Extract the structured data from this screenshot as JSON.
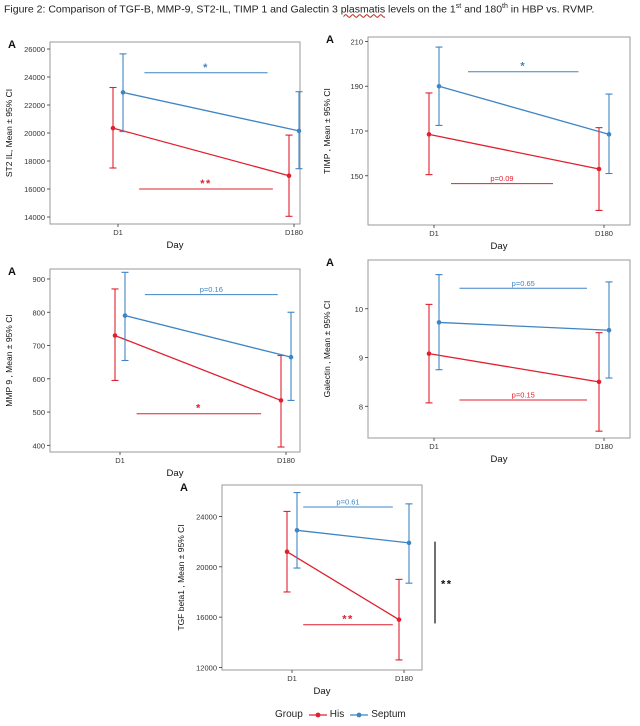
{
  "caption": {
    "prefix": "Figure 2: Comparison of TGF-B, MMP-9, ST2-IL, TIMP 1 and Galectin 3 ",
    "misspelled": "plasmatis",
    "mid": " levels on the 1",
    "sup1": "st",
    "mid2": " and 180",
    "sup2": "th",
    "suffix": " in HBP vs. RVMP."
  },
  "colors": {
    "his": "#e0202e",
    "septum": "#3f84c4",
    "axis": "#333333",
    "frame": "#9a9a9a"
  },
  "legend": {
    "title": "Group",
    "items": [
      "His",
      "Septum"
    ]
  },
  "chart_data": [
    {
      "type": "line",
      "letter": "A",
      "ylabel": "ST2 IL,  Mean ± 95% CI",
      "xlabel": "Day",
      "categories": [
        "D1",
        "D180"
      ],
      "ylim": [
        13500,
        26500
      ],
      "yticks": [
        14000,
        16000,
        18000,
        20000,
        22000,
        24000,
        26000
      ],
      "series": [
        {
          "name": "His",
          "values": [
            20350,
            16950
          ],
          "lower": [
            17500,
            14050
          ],
          "upper": [
            23250,
            19850
          ]
        },
        {
          "name": "Septum",
          "values": [
            22900,
            20150
          ],
          "lower": [
            20100,
            17450
          ],
          "upper": [
            25650,
            22950
          ]
        }
      ],
      "annotations": [
        {
          "text": "*",
          "color": "septum",
          "x1": 0.15,
          "x2": 0.85,
          "y": 24300,
          "textAbove": true
        },
        {
          "text": "**",
          "color": "his",
          "x1": 0.12,
          "x2": 0.88,
          "y": 16000,
          "textAbove": true
        }
      ]
    },
    {
      "type": "line",
      "letter": "A",
      "ylabel": "TIMP ,  Mean ± 95% CI",
      "xlabel": "Day",
      "categories": [
        "D1",
        "D180"
      ],
      "ylim": [
        128,
        212
      ],
      "yticks": [
        150,
        170,
        190,
        210
      ],
      "ytickLabels": [
        "150",
        "170",
        "190",
        "210"
      ],
      "series": [
        {
          "name": "His",
          "values": [
            168.5,
            153
          ],
          "lower": [
            150.5,
            134.5
          ],
          "upper": [
            187,
            171.5
          ]
        },
        {
          "name": "Septum",
          "values": [
            190,
            168.5
          ],
          "lower": [
            172.5,
            151
          ],
          "upper": [
            207.5,
            186.5
          ]
        }
      ],
      "annotations": [
        {
          "text": "*",
          "color": "septum",
          "x1": 0.2,
          "x2": 0.85,
          "y": 196.5,
          "textAbove": true
        },
        {
          "text": "p=0.09",
          "color": "his",
          "x1": 0.1,
          "x2": 0.7,
          "y": 146.5,
          "textAbove": true
        }
      ]
    },
    {
      "type": "line",
      "letter": "A",
      "ylabel": "MMP 9 ,  Mean ± 95% CI",
      "xlabel": "Day",
      "categories": [
        "D1",
        "D180"
      ],
      "ylim": [
        380,
        930
      ],
      "yticks": [
        400,
        500,
        600,
        700,
        800,
        900
      ],
      "series": [
        {
          "name": "His",
          "values": [
            730,
            535
          ],
          "lower": [
            595,
            395
          ],
          "upper": [
            870,
            670
          ]
        },
        {
          "name": "Septum",
          "values": [
            790,
            665
          ],
          "lower": [
            655,
            535
          ],
          "upper": [
            920,
            800
          ]
        }
      ],
      "annotations": [
        {
          "text": "p=0.16",
          "color": "septum",
          "x1": 0.15,
          "x2": 0.95,
          "y": 853,
          "textAbove": true
        },
        {
          "text": "*",
          "color": "his",
          "x1": 0.1,
          "x2": 0.85,
          "y": 495,
          "textAbove": true
        }
      ]
    },
    {
      "type": "line",
      "letter": "A",
      "ylabel": "Galectin ,  Mean ± 95% CI",
      "xlabel": "Day",
      "categories": [
        "D1",
        "D180"
      ],
      "ylim": [
        7.35,
        11.0
      ],
      "yticks": [
        8,
        9,
        10
      ],
      "series": [
        {
          "name": "His",
          "values": [
            9.08,
            8.5
          ],
          "lower": [
            8.07,
            7.49
          ],
          "upper": [
            10.09,
            9.51
          ]
        },
        {
          "name": "Septum",
          "values": [
            9.72,
            9.56
          ],
          "lower": [
            8.75,
            8.58
          ],
          "upper": [
            10.7,
            10.55
          ]
        }
      ],
      "annotations": [
        {
          "text": "p=0.65",
          "color": "septum",
          "x1": 0.15,
          "x2": 0.9,
          "y": 10.42,
          "textAbove": true
        },
        {
          "text": "p=0.15",
          "color": "his",
          "x1": 0.15,
          "x2": 0.9,
          "y": 8.13,
          "textAbove": true
        }
      ]
    },
    {
      "type": "line",
      "letter": "A",
      "ylabel": "TGF beta1 ,  Mean ± 95% CI",
      "xlabel": "Day",
      "categories": [
        "D1",
        "D180"
      ],
      "ylim": [
        11800,
        26500
      ],
      "yticks": [
        12000,
        16000,
        20000,
        24000
      ],
      "series": [
        {
          "name": "His",
          "values": [
            21200,
            15800
          ],
          "lower": [
            18000,
            12600
          ],
          "upper": [
            24400,
            19000
          ]
        },
        {
          "name": "Septum",
          "values": [
            22900,
            21900
          ],
          "lower": [
            19900,
            18700
          ],
          "upper": [
            25900,
            25000
          ]
        }
      ],
      "annotations": [
        {
          "text": "p=0.61",
          "color": "septum",
          "x1": 0.1,
          "x2": 0.9,
          "y": 24750,
          "textAbove": true
        },
        {
          "text": "**",
          "color": "his",
          "x1": 0.1,
          "x2": 0.9,
          "y": 15400,
          "textAbove": true
        }
      ],
      "sideBracket": {
        "text": "**",
        "y1": 15500,
        "y2": 22000
      }
    }
  ]
}
